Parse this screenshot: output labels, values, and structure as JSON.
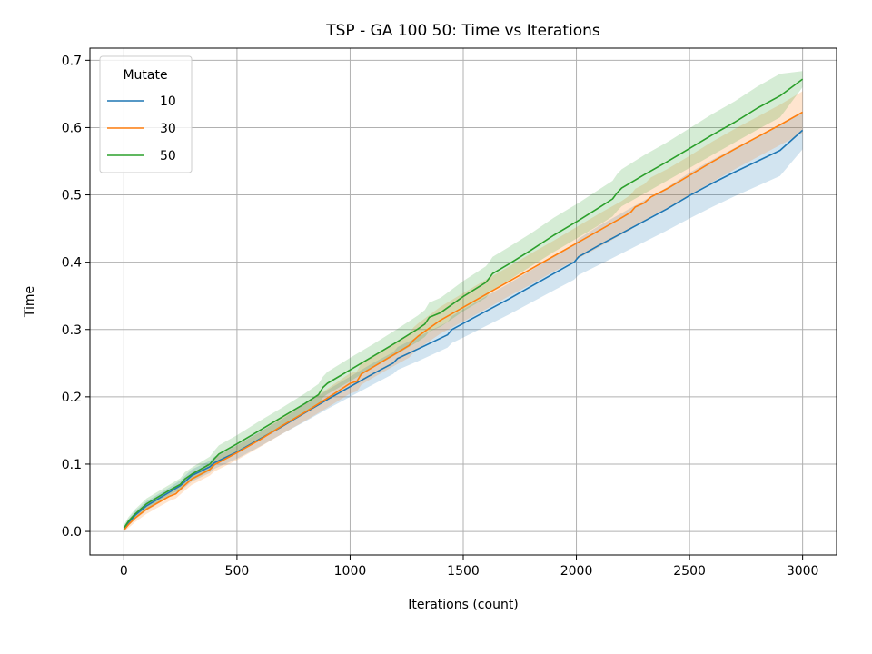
{
  "chart_data": {
    "type": "line",
    "title": "TSP - GA 100 50: Time vs Iterations",
    "xlabel": "Iterations (count)",
    "ylabel": "Time",
    "xlim": [
      -150,
      3150
    ],
    "ylim": [
      -0.035,
      0.718
    ],
    "xticks": [
      0,
      500,
      1000,
      1500,
      2000,
      2500,
      3000
    ],
    "yticks": [
      0.0,
      0.1,
      0.2,
      0.3,
      0.4,
      0.5,
      0.6,
      0.7
    ],
    "xtick_labels": [
      "0",
      "500",
      "1000",
      "1500",
      "2000",
      "2500",
      "3000"
    ],
    "ytick_labels": [
      "0.0",
      "0.1",
      "0.2",
      "0.3",
      "0.4",
      "0.5",
      "0.6",
      "0.7"
    ],
    "grid": true,
    "legend": {
      "title": "Mutate",
      "placement": "top-left",
      "entries": [
        "10",
        "30",
        "50"
      ]
    },
    "series": [
      {
        "name": "10",
        "color": "#1f77b4",
        "x": [
          0,
          20,
          50,
          100,
          200,
          250,
          300,
          380,
          400,
          500,
          600,
          700,
          800,
          900,
          1000,
          1100,
          1190,
          1210,
          1300,
          1430,
          1450,
          1500,
          1600,
          1700,
          1800,
          1900,
          1990,
          2010,
          2100,
          2200,
          2300,
          2400,
          2500,
          2600,
          2700,
          2800,
          2900,
          3000
        ],
        "y": [
          0.003,
          0.013,
          0.024,
          0.038,
          0.058,
          0.068,
          0.083,
          0.096,
          0.102,
          0.118,
          0.137,
          0.156,
          0.176,
          0.196,
          0.215,
          0.234,
          0.25,
          0.257,
          0.271,
          0.292,
          0.3,
          0.309,
          0.327,
          0.345,
          0.364,
          0.383,
          0.4,
          0.408,
          0.425,
          0.443,
          0.461,
          0.479,
          0.499,
          0.517,
          0.534,
          0.55,
          0.566,
          0.596
        ],
        "band_lower": [
          0.0,
          0.008,
          0.018,
          0.031,
          0.051,
          0.06,
          0.074,
          0.087,
          0.093,
          0.108,
          0.126,
          0.145,
          0.163,
          0.182,
          0.2,
          0.218,
          0.234,
          0.24,
          0.253,
          0.273,
          0.28,
          0.288,
          0.305,
          0.322,
          0.34,
          0.358,
          0.374,
          0.381,
          0.396,
          0.413,
          0.43,
          0.447,
          0.465,
          0.482,
          0.498,
          0.513,
          0.528,
          0.568
        ],
        "band_upper": [
          0.007,
          0.018,
          0.03,
          0.045,
          0.065,
          0.076,
          0.092,
          0.105,
          0.111,
          0.128,
          0.148,
          0.167,
          0.189,
          0.21,
          0.23,
          0.25,
          0.266,
          0.274,
          0.289,
          0.311,
          0.32,
          0.33,
          0.349,
          0.368,
          0.388,
          0.408,
          0.426,
          0.435,
          0.454,
          0.473,
          0.492,
          0.511,
          0.533,
          0.552,
          0.57,
          0.587,
          0.604,
          0.624
        ]
      },
      {
        "name": "30",
        "color": "#ff7f0e",
        "x": [
          0,
          20,
          50,
          100,
          200,
          230,
          260,
          300,
          380,
          400,
          500,
          600,
          700,
          800,
          900,
          1000,
          1030,
          1050,
          1100,
          1200,
          1260,
          1280,
          1300,
          1400,
          1500,
          1600,
          1700,
          1800,
          1900,
          2000,
          2100,
          2200,
          2240,
          2260,
          2300,
          2330,
          2400,
          2500,
          2600,
          2700,
          2800,
          2900,
          3000
        ],
        "y": [
          0.002,
          0.01,
          0.02,
          0.033,
          0.052,
          0.056,
          0.066,
          0.078,
          0.092,
          0.099,
          0.117,
          0.136,
          0.157,
          0.177,
          0.198,
          0.22,
          0.223,
          0.234,
          0.244,
          0.264,
          0.276,
          0.284,
          0.29,
          0.314,
          0.333,
          0.352,
          0.371,
          0.39,
          0.409,
          0.428,
          0.447,
          0.466,
          0.474,
          0.482,
          0.488,
          0.497,
          0.509,
          0.529,
          0.549,
          0.568,
          0.586,
          0.604,
          0.623
        ],
        "band_lower": [
          0.0,
          0.005,
          0.014,
          0.026,
          0.045,
          0.049,
          0.058,
          0.069,
          0.083,
          0.089,
          0.106,
          0.125,
          0.145,
          0.164,
          0.184,
          0.205,
          0.208,
          0.218,
          0.228,
          0.247,
          0.258,
          0.265,
          0.271,
          0.294,
          0.312,
          0.33,
          0.349,
          0.367,
          0.386,
          0.404,
          0.422,
          0.441,
          0.448,
          0.455,
          0.46,
          0.468,
          0.48,
          0.5,
          0.519,
          0.538,
          0.556,
          0.574,
          0.592
        ],
        "band_upper": [
          0.005,
          0.015,
          0.026,
          0.04,
          0.059,
          0.063,
          0.074,
          0.087,
          0.101,
          0.109,
          0.128,
          0.147,
          0.169,
          0.19,
          0.212,
          0.235,
          0.238,
          0.25,
          0.26,
          0.281,
          0.294,
          0.303,
          0.309,
          0.334,
          0.354,
          0.374,
          0.393,
          0.413,
          0.432,
          0.452,
          0.472,
          0.491,
          0.5,
          0.509,
          0.516,
          0.526,
          0.538,
          0.558,
          0.579,
          0.598,
          0.616,
          0.634,
          0.654
        ]
      },
      {
        "name": "50",
        "color": "#2ca02c",
        "x": [
          0,
          20,
          50,
          100,
          200,
          250,
          270,
          300,
          380,
          400,
          420,
          500,
          600,
          700,
          800,
          860,
          880,
          900,
          1000,
          1100,
          1200,
          1300,
          1330,
          1350,
          1400,
          1500,
          1600,
          1610,
          1630,
          1700,
          1800,
          1900,
          2000,
          2100,
          2160,
          2180,
          2200,
          2300,
          2400,
          2500,
          2600,
          2700,
          2800,
          2900,
          3000
        ],
        "y": [
          0.005,
          0.015,
          0.026,
          0.041,
          0.061,
          0.07,
          0.078,
          0.085,
          0.1,
          0.108,
          0.115,
          0.13,
          0.15,
          0.17,
          0.19,
          0.203,
          0.214,
          0.22,
          0.24,
          0.26,
          0.28,
          0.301,
          0.308,
          0.318,
          0.325,
          0.349,
          0.37,
          0.374,
          0.383,
          0.397,
          0.418,
          0.44,
          0.46,
          0.481,
          0.494,
          0.503,
          0.51,
          0.53,
          0.549,
          0.569,
          0.589,
          0.608,
          0.629,
          0.647,
          0.672
        ],
        "band_lower": [
          0.0,
          0.009,
          0.019,
          0.034,
          0.054,
          0.062,
          0.069,
          0.076,
          0.09,
          0.097,
          0.103,
          0.118,
          0.137,
          0.157,
          0.176,
          0.188,
          0.199,
          0.204,
          0.223,
          0.243,
          0.262,
          0.282,
          0.289,
          0.297,
          0.304,
          0.327,
          0.347,
          0.351,
          0.359,
          0.373,
          0.394,
          0.415,
          0.435,
          0.455,
          0.468,
          0.476,
          0.483,
          0.502,
          0.521,
          0.54,
          0.559,
          0.578,
          0.597,
          0.615,
          0.66
        ],
        "band_upper": [
          0.01,
          0.021,
          0.033,
          0.049,
          0.069,
          0.079,
          0.088,
          0.095,
          0.111,
          0.12,
          0.128,
          0.143,
          0.164,
          0.184,
          0.205,
          0.219,
          0.23,
          0.237,
          0.258,
          0.278,
          0.299,
          0.321,
          0.329,
          0.34,
          0.347,
          0.372,
          0.394,
          0.398,
          0.408,
          0.422,
          0.443,
          0.466,
          0.486,
          0.508,
          0.521,
          0.531,
          0.538,
          0.559,
          0.578,
          0.599,
          0.62,
          0.639,
          0.661,
          0.68,
          0.684
        ]
      }
    ]
  }
}
